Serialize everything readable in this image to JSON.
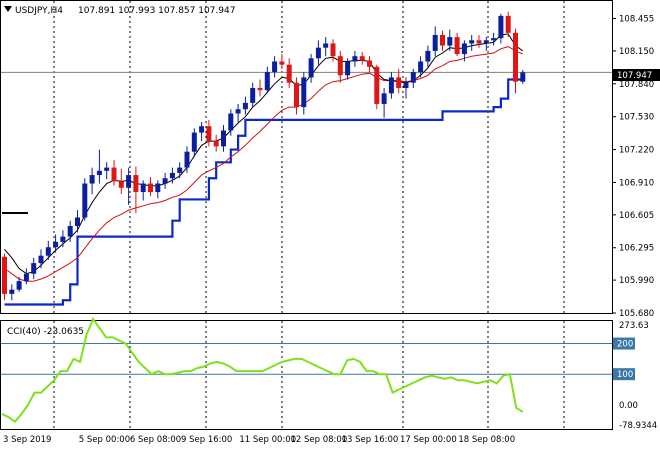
{
  "chart_window": {
    "symbol_tf": "USDJPY,H4",
    "ohlc": "107.891 107.993 107.857 107.947",
    "current_price": "107.947",
    "colors": {
      "bull_candle": "#0a1ea0",
      "bear_candle": "#e01515",
      "fast_ma": "#000000",
      "slow_ma": "#d01010",
      "trailing_stop": "#0b28c8",
      "cci_line": "#7ee21a",
      "cci_level": "#3a78a8",
      "price_line": "#808080"
    },
    "icons": [
      "triangle-down-icon"
    ]
  },
  "cci_panel": {
    "title": "CCI(40) -23.0635",
    "levels": [
      200,
      100
    ]
  },
  "chart_data": [
    {
      "type": "candlestick",
      "title": "USDJPY,H4",
      "ylabel": "",
      "xlabel": "",
      "ylim": [
        105.68,
        108.62
      ],
      "y_ticks": [
        105.68,
        105.99,
        106.295,
        106.605,
        106.91,
        107.22,
        107.53,
        107.84,
        108.15,
        108.455
      ],
      "y_tick_labels": [
        "105.680",
        "105.990",
        "106.295",
        "106.605",
        "106.910",
        "107.220",
        "107.530",
        "107.840",
        "108.150",
        "108.455"
      ],
      "x_tick_labels": [
        "3 Sep 2019",
        "5 Sep 00:00",
        "6 Sep 08:00",
        "9 Sep 16:00",
        "11 Sep 00:00",
        "12 Sep 08:00",
        "13 Sep 16:00",
        "17 Sep 00:00",
        "18 Sep 08:00"
      ],
      "current_price": 107.947,
      "candles": [
        [
          106.21,
          106.24,
          105.8,
          105.86
        ],
        [
          105.86,
          105.95,
          105.8,
          105.9
        ],
        [
          105.9,
          106.02,
          105.88,
          105.98
        ],
        [
          105.98,
          106.1,
          105.95,
          106.05
        ],
        [
          106.05,
          106.2,
          106.0,
          106.15
        ],
        [
          106.15,
          106.28,
          106.1,
          106.22
        ],
        [
          106.22,
          106.36,
          106.18,
          106.3
        ],
        [
          106.3,
          106.42,
          106.25,
          106.35
        ],
        [
          106.35,
          106.46,
          106.3,
          106.4
        ],
        [
          106.4,
          106.55,
          106.35,
          106.5
        ],
        [
          106.5,
          106.65,
          106.44,
          106.58
        ],
        [
          106.58,
          106.95,
          106.55,
          106.9
        ],
        [
          106.9,
          107.05,
          106.8,
          106.98
        ],
        [
          106.98,
          107.22,
          106.9,
          107.02
        ],
        [
          107.02,
          107.1,
          106.94,
          107.05
        ],
        [
          107.05,
          107.12,
          106.88,
          106.92
        ],
        [
          106.92,
          107.04,
          106.8,
          106.86
        ],
        [
          106.86,
          107.05,
          106.7,
          106.98
        ],
        [
          106.98,
          107.06,
          106.62,
          106.82
        ],
        [
          106.82,
          106.93,
          106.74,
          106.9
        ],
        [
          106.9,
          106.96,
          106.78,
          106.82
        ],
        [
          106.82,
          106.93,
          106.76,
          106.9
        ],
        [
          106.9,
          107.0,
          106.85,
          106.95
        ],
        [
          106.95,
          107.05,
          106.9,
          107.0
        ],
        [
          107.0,
          107.1,
          106.95,
          107.05
        ],
        [
          107.05,
          107.25,
          107.0,
          107.2
        ],
        [
          107.2,
          107.42,
          107.15,
          107.38
        ],
        [
          107.38,
          107.48,
          107.3,
          107.44
        ],
        [
          107.44,
          107.5,
          107.25,
          107.3
        ],
        [
          107.3,
          107.36,
          107.2,
          107.25
        ],
        [
          107.25,
          107.45,
          107.2,
          107.4
        ],
        [
          107.4,
          107.6,
          107.35,
          107.56
        ],
        [
          107.56,
          107.65,
          107.48,
          107.6
        ],
        [
          107.6,
          107.72,
          107.55,
          107.66
        ],
        [
          107.66,
          107.85,
          107.62,
          107.8
        ],
        [
          107.8,
          107.88,
          107.72,
          107.78
        ],
        [
          107.78,
          108.0,
          107.75,
          107.95
        ],
        [
          107.95,
          108.1,
          107.9,
          108.05
        ],
        [
          108.05,
          108.12,
          107.98,
          108.02
        ],
        [
          108.02,
          108.08,
          107.8,
          107.85
        ],
        [
          107.85,
          107.9,
          107.55,
          107.62
        ],
        [
          107.62,
          107.95,
          107.55,
          107.9
        ],
        [
          107.9,
          108.12,
          107.85,
          108.08
        ],
        [
          108.08,
          108.25,
          108.02,
          108.18
        ],
        [
          108.18,
          108.28,
          108.1,
          108.22
        ],
        [
          108.22,
          108.26,
          108.05,
          108.1
        ],
        [
          108.1,
          108.15,
          107.85,
          107.92
        ],
        [
          107.92,
          108.08,
          107.88,
          108.05
        ],
        [
          108.05,
          108.15,
          108.0,
          108.1
        ],
        [
          108.1,
          108.14,
          108.02,
          108.06
        ],
        [
          108.06,
          108.1,
          107.95,
          108.0
        ],
        [
          108.0,
          108.02,
          107.6,
          107.65
        ],
        [
          107.65,
          107.8,
          107.52,
          107.75
        ],
        [
          107.75,
          107.95,
          107.7,
          107.9
        ],
        [
          107.9,
          107.98,
          107.75,
          107.8
        ],
        [
          107.8,
          107.9,
          107.7,
          107.85
        ],
        [
          107.85,
          107.98,
          107.8,
          107.95
        ],
        [
          107.95,
          108.1,
          107.9,
          108.05
        ],
        [
          108.05,
          108.2,
          108.0,
          108.15
        ],
        [
          108.15,
          108.38,
          108.1,
          108.3
        ],
        [
          108.3,
          108.34,
          108.15,
          108.2
        ],
        [
          108.2,
          108.35,
          108.15,
          108.28
        ],
        [
          108.28,
          108.32,
          108.1,
          108.12
        ],
        [
          108.12,
          108.25,
          108.05,
          108.22
        ],
        [
          108.22,
          108.3,
          108.15,
          108.25
        ],
        [
          108.25,
          108.3,
          108.18,
          108.22
        ],
        [
          108.22,
          108.28,
          108.15,
          108.25
        ],
        [
          108.25,
          108.32,
          108.2,
          108.27
        ],
        [
          108.27,
          108.5,
          108.22,
          108.48
        ],
        [
          108.48,
          108.52,
          108.28,
          108.32
        ],
        [
          108.32,
          108.36,
          107.75,
          107.86
        ],
        [
          107.86,
          107.97,
          107.84,
          107.947
        ]
      ],
      "fast_ma": [
        106.28,
        106.2,
        106.1,
        106.05,
        106.07,
        106.13,
        106.2,
        106.27,
        106.33,
        106.39,
        106.46,
        106.6,
        106.72,
        106.82,
        106.9,
        106.93,
        106.92,
        106.93,
        106.9,
        106.89,
        106.88,
        106.88,
        106.9,
        106.93,
        106.97,
        107.05,
        107.16,
        107.26,
        107.3,
        107.3,
        107.33,
        107.4,
        107.47,
        107.53,
        107.62,
        107.68,
        107.76,
        107.84,
        107.9,
        107.89,
        107.82,
        107.84,
        107.92,
        108.01,
        108.08,
        108.09,
        108.05,
        108.05,
        108.06,
        108.06,
        108.05,
        107.94,
        107.88,
        107.87,
        107.86,
        107.85,
        107.87,
        107.92,
        107.99,
        108.09,
        108.13,
        108.18,
        108.17,
        108.18,
        108.2,
        108.21,
        108.22,
        108.23,
        108.3,
        108.31,
        108.2,
        108.15
      ],
      "slow_ma": [
        106.1,
        106.05,
        106.0,
        105.98,
        105.98,
        106.0,
        106.03,
        106.07,
        106.11,
        106.15,
        106.2,
        106.29,
        106.38,
        106.46,
        106.53,
        106.58,
        106.61,
        106.65,
        106.67,
        106.69,
        106.71,
        106.72,
        106.74,
        106.77,
        106.79,
        106.84,
        106.91,
        106.98,
        107.02,
        107.05,
        107.09,
        107.15,
        107.2,
        107.26,
        107.33,
        107.39,
        107.46,
        107.53,
        107.59,
        107.62,
        107.62,
        107.65,
        107.7,
        107.77,
        107.83,
        107.86,
        107.87,
        107.89,
        107.91,
        107.93,
        107.94,
        107.9,
        107.87,
        107.87,
        107.87,
        107.86,
        107.87,
        107.89,
        107.92,
        107.98,
        108.01,
        108.05,
        108.06,
        108.08,
        108.1,
        108.11,
        108.12,
        108.13,
        108.17,
        108.19,
        108.15,
        108.12
      ],
      "trailing_stop": [
        105.76,
        105.76,
        105.76,
        105.76,
        105.76,
        105.76,
        105.76,
        105.76,
        105.8,
        105.95,
        106.4,
        106.4,
        106.4,
        106.4,
        106.4,
        106.4,
        106.4,
        106.4,
        106.4,
        106.4,
        106.4,
        106.4,
        106.4,
        106.55,
        106.75,
        106.75,
        106.75,
        106.75,
        106.95,
        107.1,
        107.1,
        107.22,
        107.35,
        107.5,
        107.5,
        107.5,
        107.5,
        107.5,
        107.5,
        107.5,
        107.5,
        107.5,
        107.5,
        107.5,
        107.5,
        107.5,
        107.5,
        107.5,
        107.5,
        107.5,
        107.5,
        107.5,
        107.5,
        107.5,
        107.5,
        107.5,
        107.5,
        107.5,
        107.5,
        107.5,
        107.58,
        107.58,
        107.58,
        107.58,
        107.58,
        107.58,
        107.58,
        107.62,
        107.7,
        107.88,
        107.88,
        107.88
      ]
    },
    {
      "type": "line",
      "title": "CCI(40) -23.0635",
      "ylabel": "",
      "xlabel": "",
      "ylim": [
        -78.9344,
        273.63
      ],
      "y_ticks": [
        273.63,
        200,
        100,
        0,
        -78.9344
      ],
      "y_tick_labels": [
        "273.63",
        "200",
        "100",
        "0.00",
        "-78.9344"
      ],
      "levels": [
        200,
        100
      ],
      "series": [
        {
          "values": [
            -30,
            -40,
            -55,
            -30,
            0,
            40,
            40,
            60,
            80,
            110,
            110,
            150,
            140,
            230,
            280,
            250,
            220,
            220,
            210,
            200,
            170,
            140,
            120,
            100,
            110,
            100,
            100,
            105,
            110,
            110,
            120,
            125,
            135,
            140,
            135,
            125,
            110,
            110,
            110,
            110,
            110,
            120,
            130,
            140,
            145,
            150,
            150,
            140,
            130,
            120,
            110,
            100,
            100,
            145,
            150,
            140,
            110,
            110,
            100,
            100,
            40,
            50,
            60,
            70,
            80,
            90,
            95,
            90,
            85,
            90,
            80,
            80,
            75,
            70,
            75,
            80,
            70,
            95,
            100,
            -10,
            -23.0635
          ]
        }
      ]
    }
  ]
}
